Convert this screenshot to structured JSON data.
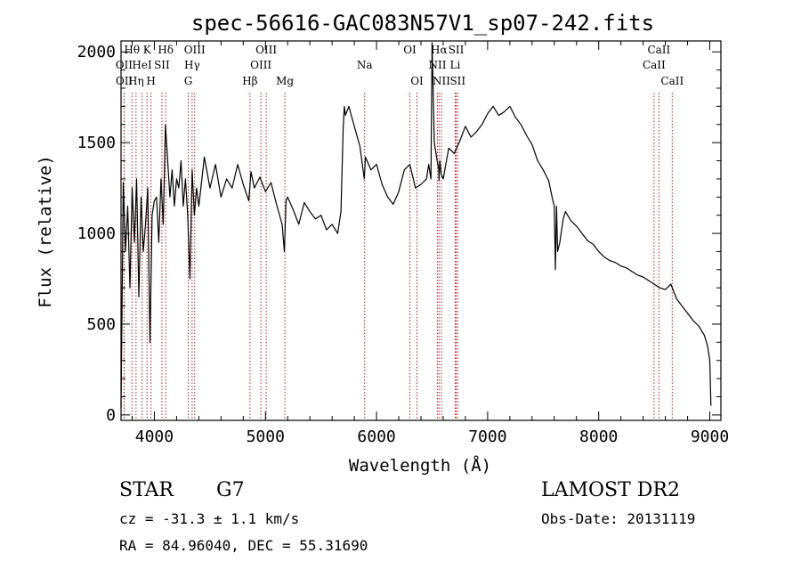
{
  "chart_data": {
    "type": "line",
    "title": "spec-56616-GAC083N57V1_sp07-242.fits",
    "xlabel": "Wavelength (Å)",
    "ylabel": "Flux (relative)",
    "xlim": [
      3700,
      9100
    ],
    "ylim": [
      -30,
      2060
    ],
    "xticks": [
      4000,
      5000,
      6000,
      7000,
      8000,
      9000
    ],
    "yticks": [
      0,
      500,
      1000,
      1500,
      2000
    ],
    "grid": false,
    "series": [
      {
        "x": [
          3700,
          3720,
          3740,
          3760,
          3780,
          3800,
          3820,
          3840,
          3860,
          3880,
          3900,
          3920,
          3940,
          3960,
          3980,
          4000,
          4020,
          4040,
          4060,
          4080,
          4100,
          4120,
          4140,
          4160,
          4180,
          4200,
          4220,
          4240,
          4260,
          4280,
          4300,
          4320,
          4340,
          4360,
          4380,
          4400,
          4450,
          4500,
          4550,
          4600,
          4650,
          4700,
          4750,
          4800,
          4850,
          4870,
          4900,
          4950,
          5000,
          5050,
          5100,
          5150,
          5170,
          5185,
          5200,
          5250,
          5300,
          5350,
          5400,
          5450,
          5500,
          5550,
          5600,
          5650,
          5680,
          5700,
          5710,
          5720,
          5750,
          5800,
          5850,
          5890,
          5900,
          5950,
          6000,
          6050,
          6100,
          6150,
          6200,
          6250,
          6300,
          6350,
          6400,
          6450,
          6470,
          6490,
          6500,
          6520,
          6540,
          6560,
          6563,
          6570,
          6580,
          6600,
          6650,
          6700,
          6750,
          6800,
          6850,
          6900,
          6950,
          7000,
          7050,
          7100,
          7150,
          7200,
          7250,
          7300,
          7350,
          7400,
          7450,
          7500,
          7550,
          7580,
          7600,
          7610,
          7620,
          7630,
          7650,
          7680,
          7700,
          7750,
          7800,
          7850,
          7900,
          7950,
          8000,
          8050,
          8100,
          8150,
          8200,
          8250,
          8300,
          8350,
          8400,
          8450,
          8500,
          8550,
          8600,
          8650,
          8700,
          8750,
          8800,
          8850,
          8900,
          8950,
          8980,
          9000,
          9010
        ],
        "y": [
          40,
          1280,
          900,
          1150,
          700,
          1250,
          950,
          1300,
          650,
          1200,
          900,
          1050,
          1250,
          400,
          1100,
          1180,
          1200,
          950,
          1300,
          1050,
          1600,
          1400,
          1200,
          1350,
          1150,
          1300,
          1250,
          1400,
          1150,
          1300,
          1100,
          750,
          1350,
          1100,
          1250,
          1150,
          1420,
          1250,
          1380,
          1200,
          1300,
          1250,
          1380,
          1270,
          1180,
          1340,
          1250,
          1310,
          1230,
          1280,
          1160,
          1050,
          900,
          1180,
          1200,
          1130,
          1050,
          1170,
          1120,
          1080,
          1100,
          1020,
          1050,
          1000,
          1120,
          1580,
          1700,
          1650,
          1700,
          1590,
          1480,
          1300,
          1420,
          1350,
          1380,
          1270,
          1200,
          1160,
          1230,
          1350,
          1380,
          1250,
          1270,
          1300,
          1380,
          1300,
          2050,
          1500,
          1420,
          1350,
          1290,
          1400,
          1330,
          1300,
          1470,
          1440,
          1510,
          1590,
          1530,
          1560,
          1600,
          1660,
          1700,
          1650,
          1670,
          1700,
          1640,
          1600,
          1540,
          1490,
          1400,
          1350,
          1290,
          1200,
          1150,
          800,
          1150,
          900,
          950,
          1080,
          1120,
          1070,
          1040,
          1000,
          960,
          940,
          900,
          870,
          850,
          840,
          820,
          810,
          790,
          770,
          760,
          740,
          720,
          700,
          690,
          720,
          640,
          600,
          560,
          520,
          490,
          440,
          380,
          300,
          50
        ]
      }
    ],
    "lines": [
      {
        "label": "Hθ",
        "x": 3798,
        "row": 0
      },
      {
        "label": "K",
        "x": 3934,
        "row": 0
      },
      {
        "label": "Hδ",
        "x": 4102,
        "row": 0
      },
      {
        "label": "OIII",
        "x": 4363,
        "row": 0
      },
      {
        "label": "OIII",
        "x": 5007,
        "row": 0
      },
      {
        "label": "OI",
        "x": 6300,
        "row": 0
      },
      {
        "label": "Hα",
        "x": 6563,
        "row": 0
      },
      {
        "label": "SII",
        "x": 6717,
        "row": 0
      },
      {
        "label": "CaII",
        "x": 8542,
        "row": 0
      },
      {
        "label": "OII",
        "x": 3727,
        "row": 1
      },
      {
        "label": "HeI",
        "x": 3889,
        "row": 1
      },
      {
        "label": "SII",
        "x": 4068,
        "row": 1
      },
      {
        "label": "Hγ",
        "x": 4340,
        "row": 1
      },
      {
        "label": "OIII",
        "x": 4959,
        "row": 1
      },
      {
        "label": "Na",
        "x": 5893,
        "row": 1
      },
      {
        "label": "NII",
        "x": 6548,
        "row": 1
      },
      {
        "label": "Li",
        "x": 6708,
        "row": 1
      },
      {
        "label": "CaII",
        "x": 8498,
        "row": 1
      },
      {
        "label": "OII",
        "x": 3729,
        "row": 2
      },
      {
        "label": "Hη",
        "x": 3835,
        "row": 2
      },
      {
        "label": "H",
        "x": 3969,
        "row": 2
      },
      {
        "label": "G",
        "x": 4305,
        "row": 2
      },
      {
        "label": "Hβ",
        "x": 4861,
        "row": 2
      },
      {
        "label": "Mg",
        "x": 5175,
        "row": 2
      },
      {
        "label": "OI",
        "x": 6364,
        "row": 2
      },
      {
        "label": "NII",
        "x": 6584,
        "row": 2
      },
      {
        "label": "SII",
        "x": 6731,
        "row": 2
      },
      {
        "label": "CaII",
        "x": 8662,
        "row": 2
      }
    ]
  },
  "info": {
    "object_class": "STAR",
    "subclass": "G7",
    "redshift": "cz = -31.3 ± 1.1 km/s",
    "coords": "RA =  84.96040, DEC =  55.31690",
    "survey": "LAMOST DR2",
    "obs_date": "Obs-Date: 20131119"
  },
  "colors": {
    "spectrum": "#000000",
    "line_marker": "#b22222"
  }
}
